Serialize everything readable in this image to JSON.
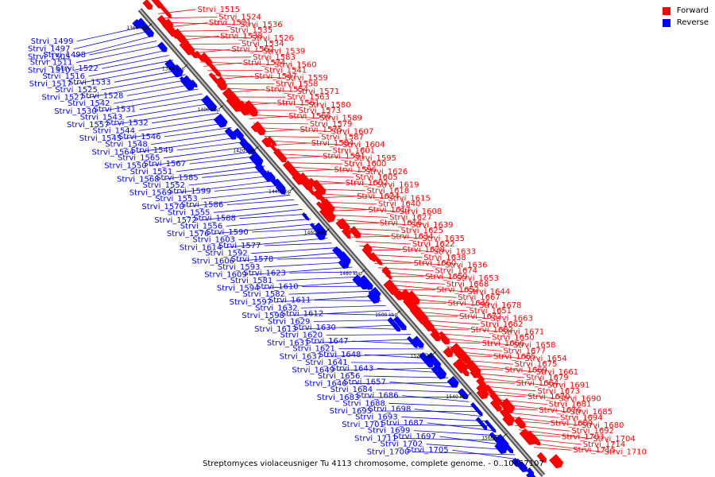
{
  "legend": {
    "forward": "Forward",
    "reverse": "Reverse"
  },
  "colors": {
    "forward": "#ff0000",
    "reverse": "#0000ff",
    "axis": "#888888"
  },
  "caption": "Streptomyces violaceusniger Tu 4113 chromosome, complete genome. - 0..10657107",
  "ticks": [
    "1360 kbp",
    "1380 kbp",
    "1400 kbp",
    "1420 kbp",
    "1440 kbp",
    "1460 kbp",
    "1480 kbp",
    "1500 kbp",
    "1520 kbp",
    "1540 kbp",
    "1560 kbp"
  ],
  "forward_labels": [
    "Strvi_1515",
    "Strvi_1524",
    "Strvi_1536",
    "Strvi_1521",
    "Strvi_1535",
    "Strvi_1526",
    "Strvi_1538",
    "Strvi_1534",
    "Strvi_1539",
    "Strvi_1562",
    "Strvi_1583",
    "Strvi_1560",
    "Strvi_1574",
    "Strvi_1541",
    "Strvi_1559",
    "Strvi_1547",
    "Strvi_1558",
    "Strvi_1571",
    "Strvi_1554",
    "Strvi_1563",
    "Strvi_1580",
    "Strvi_1561",
    "Strvi_1573",
    "Strvi_1589",
    "Strvi_1566",
    "Strvi_1579",
    "Strvi_1607",
    "Strvi_1575",
    "Strvi_1587",
    "Strvi_1604",
    "Strvi_1584",
    "Strvi_1601",
    "Strvi_1595",
    "Strvi_1591",
    "Strvi_1600",
    "Strvi_1626",
    "Strvi_1596",
    "Strvi_1605",
    "Strvi_1619",
    "Strvi_1602",
    "Strvi_1618",
    "Strvi_1615",
    "Strvi_1624",
    "Strvi_1640",
    "Strvi_1608",
    "Strvi_1617",
    "Strvi_1627",
    "Strvi_1639",
    "Strvi_1616",
    "Strvi_1625",
    "Strvi_1635",
    "Strvi_1634",
    "Strvi_1622",
    "Strvi_1633",
    "Strvi_1628",
    "Strvi_1638",
    "Strvi_1636",
    "Strvi_1660",
    "Strvi_1674",
    "Strvi_1653",
    "Strvi_1659",
    "Strvi_1668",
    "Strvi_1644",
    "Strvi_1652",
    "Strvi_1667",
    "Strvi_1678",
    "Strvi_1645",
    "Strvi_1651",
    "Strvi_1663",
    "Strvi_1672",
    "Strvi_1662",
    "Strvi_1671",
    "Strvi_1682",
    "Strvi_1650",
    "Strvi_1658",
    "Strvi_1666",
    "Strvi_1677",
    "Strvi_1654",
    "Strvi_1665",
    "Strvi_1675",
    "Strvi_1661",
    "Strvi_1669",
    "Strvi_1679",
    "Strvi_1691",
    "Strvi_1664",
    "Strvi_1673",
    "Strvi_1690",
    "Strvi_1670",
    "Strvi_1681",
    "Strvi_1685",
    "Strvi_1676",
    "Strvi_1694",
    "Strvi_1680",
    "Strvi_1689",
    "Strvi_1692",
    "Strvi_1704",
    "Strvi_1703",
    "Strvi_1714",
    "Strvi_1710",
    "Strvi_1715"
  ],
  "reverse_labels": [
    "Strvi_1499",
    "Strvi_1497",
    "Strvi_1505",
    "Strvi_1498",
    "Strvi_1511",
    "Strvi_1510",
    "Strvi_1522",
    "Strvi_1516",
    "Strvi_1517",
    "Strvi_1533",
    "Strvi_1525",
    "Strvi_1527",
    "Strvi_1528",
    "Strvi_1542",
    "Strvi_1530",
    "Strvi_1531",
    "Strvi_1543",
    "Strvi_1557",
    "Strvi_1532",
    "Strvi_1544",
    "Strvi_1545",
    "Strvi_1546",
    "Strvi_1548",
    "Strvi_1564",
    "Strvi_1549",
    "Strvi_1565",
    "Strvi_1550",
    "Strvi_1567",
    "Strvi_1551",
    "Strvi_1568",
    "Strvi_1585",
    "Strvi_1552",
    "Strvi_1569",
    "Strvi_1599",
    "Strvi_1553",
    "Strvi_1570",
    "Strvi_1586",
    "Strvi_1555",
    "Strvi_1572",
    "Strvi_1588",
    "Strvi_1556",
    "Strvi_1576",
    "Strvi_1590",
    "Strvi_1603",
    "Strvi_1614",
    "Strvi_1577",
    "Strvi_1592",
    "Strvi_1606",
    "Strvi_1578",
    "Strvi_1593",
    "Strvi_1609",
    "Strvi_1623",
    "Strvi_1581",
    "Strvi_1594",
    "Strvi_1610",
    "Strvi_1582",
    "Strvi_1597",
    "Strvi_1611",
    "Strvi_1632",
    "Strvi_1598",
    "Strvi_1612",
    "Strvi_1629",
    "Strvi_1613",
    "Strvi_1630",
    "Strvi_1620",
    "Strvi_1631",
    "Strvi_1647",
    "Strvi_1621",
    "Strvi_1637",
    "Strvi_1648",
    "Strvi_1641",
    "Strvi_1649",
    "Strvi_1643",
    "Strvi_1656",
    "Strvi_1646",
    "Strvi_1657",
    "Strvi_1684",
    "Strvi_1683",
    "Strvi_1686",
    "Strvi_1688",
    "Strvi_1695",
    "Strvi_1698",
    "Strvi_1693",
    "Strvi_1701",
    "Strvi_1687",
    "Strvi_1699",
    "Strvi_1711",
    "Strvi_1697",
    "Strvi_1702",
    "Strvi_1700",
    "Strvi_1705"
  ]
}
